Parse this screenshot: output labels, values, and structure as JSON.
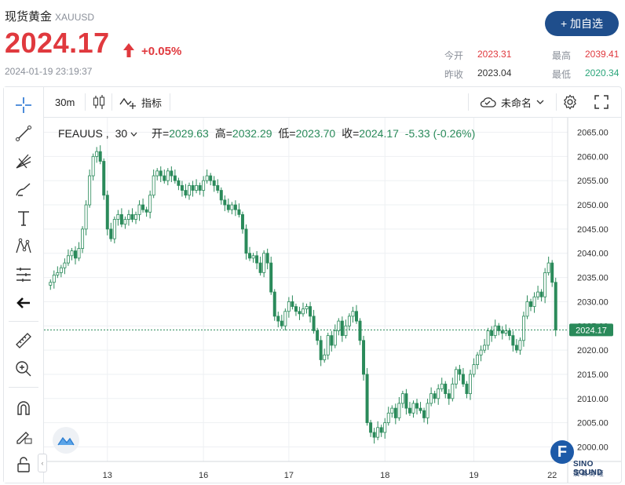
{
  "header": {
    "name": "现货黄金",
    "code": "XAUUSD",
    "price": "2024.17",
    "change_pct": "+0.05%",
    "timestamp": "2024-01-19 23:19:37",
    "add_button": "+ 加自选",
    "quotes": {
      "open_label": "今开",
      "open": "2023.31",
      "high_label": "最高",
      "high": "2039.41",
      "prev_close_label": "昨收",
      "prev_close": "2023.04",
      "low_label": "最低",
      "low": "2020.34"
    }
  },
  "toolbar": {
    "interval": "30m",
    "indicators_label": "指标",
    "layout_name": "未命名"
  },
  "legend": {
    "symbol": "FEAUUS",
    "interval": "30",
    "open_label": "开=",
    "open": "2029.63",
    "high_label": "高=",
    "high": "2032.29",
    "low_label": "低=",
    "low": "2023.70",
    "close_label": "收=",
    "close": "2024.17",
    "change": "-5.33 (-0.26%)"
  },
  "watermark": {
    "letter": "F",
    "text": "SINO SOUND",
    "sub": "漢 聲 財 經"
  },
  "colors": {
    "up": "#26a69a",
    "down": "#2a8a5a",
    "accent": "#1f4e8c",
    "red": "#e0393e"
  },
  "chart_data": {
    "type": "candlestick",
    "ylim": [
      1997,
      2068
    ],
    "yticks": [
      2000,
      2005,
      2010,
      2015,
      2020,
      2025,
      2030,
      2035,
      2040,
      2045,
      2050,
      2055,
      2060,
      2065
    ],
    "ytick_labels": [
      "2000.00",
      "2005.00",
      "2010.00",
      "2015.00",
      "2020.00",
      "2025.00",
      "2030.00",
      "2035.00",
      "2040.00",
      "2045.00",
      "2050.00",
      "2055.00",
      "2060.00",
      "2065.00"
    ],
    "xtick_labels": [
      "13",
      "16",
      "17",
      "18",
      "19",
      "22"
    ],
    "last_price_label": "2024.17",
    "last_price": 2024.17,
    "close": [
      2034,
      2035.5,
      2036,
      2037,
      2038,
      2039.5,
      2040.5,
      2039,
      2041,
      2045,
      2050,
      2056,
      2060,
      2061,
      2059,
      2052,
      2045,
      2043,
      2047,
      2048,
      2046,
      2047,
      2048,
      2047,
      2048,
      2050,
      2049,
      2048.5,
      2052,
      2056,
      2057,
      2056,
      2055,
      2057,
      2056,
      2055,
      2054,
      2053,
      2052,
      2054,
      2053,
      2054,
      2053,
      2055,
      2056,
      2055,
      2054,
      2053,
      2051,
      2050,
      2049,
      2050,
      2049,
      2048,
      2045,
      2040,
      2039,
      2039.5,
      2038,
      2036,
      2040,
      2038,
      2032,
      2027,
      2026,
      2025,
      2028,
      2030,
      2029,
      2028,
      2027.5,
      2028.5,
      2029,
      2027,
      2024,
      2022,
      2018,
      2019,
      2023,
      2021,
      2024,
      2026,
      2023,
      2025,
      2027,
      2028,
      2026,
      2022,
      2015,
      2005,
      2003,
      2002,
      2004,
      2003,
      2005,
      2007,
      2008,
      2006,
      2009,
      2011,
      2008,
      2007,
      2009,
      2008,
      2007.5,
      2006,
      2009,
      2011,
      2010,
      2012,
      2013,
      2011,
      2010,
      2013,
      2016,
      2015,
      2013,
      2011,
      2015,
      2017,
      2019,
      2020,
      2021,
      2024,
      2023,
      2025,
      2024,
      2023.5,
      2024,
      2023,
      2021,
      2020,
      2022,
      2027,
      2030,
      2029,
      2031,
      2032,
      2031,
      2036,
      2038,
      2034,
      2024.17
    ]
  }
}
